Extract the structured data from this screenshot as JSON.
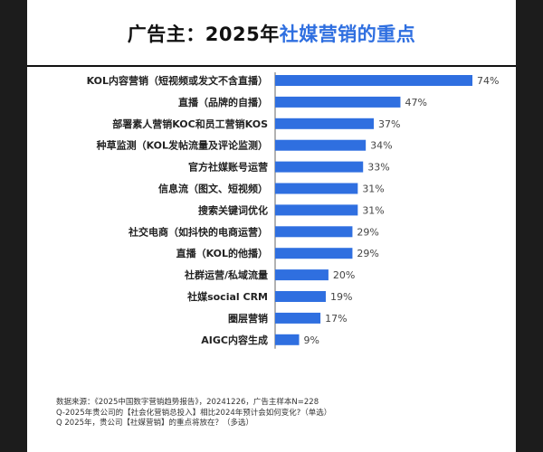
{
  "title": {
    "prefix": "广告主：2025年",
    "highlight": "社媒营销的重点"
  },
  "colors": {
    "bar": "#2f6fe0",
    "title_highlight": "#2f6fe0",
    "label": "#222222"
  },
  "chart_data": {
    "type": "bar",
    "orientation": "horizontal",
    "title": "广告主：2025年社媒营销的重点",
    "categories": [
      "KOL内容营销（短视频或发文不含直播）",
      "直播（品牌的自播）",
      "部署素人营销KOC和员工营销KOS",
      "种草监测（KOL发帖流量及评论监测）",
      "官方社媒账号运营",
      "信息流（图文、短视频）",
      "搜索关键词优化",
      "社交电商（如抖快的电商运营）",
      "直播（KOL的他播）",
      "社群运营/私域流量",
      "社媒social CRM",
      "圈层营销",
      "AIGC内容生成"
    ],
    "values": [
      74,
      47,
      37,
      34,
      33,
      31,
      31,
      29,
      29,
      20,
      19,
      17,
      9
    ],
    "value_labels": [
      "74%",
      "47%",
      "37%",
      "34%",
      "33%",
      "31%",
      "31%",
      "29%",
      "29%",
      "20%",
      "19%",
      "17%",
      "9%"
    ],
    "xlim": [
      0,
      74
    ],
    "xlabel": "",
    "ylabel": "",
    "grid": false
  },
  "footer": {
    "source": "数据来源：《2025中国数字营销趋势报告》，20241226，广告主样本N=228",
    "q1": "Q-2025年贵公司的【社会化营销总投入】相比2024年预计会如何变化?（单选）",
    "q2": "Q 2025年，贵公司【社媒营销】的重点将放在？（多选）"
  }
}
